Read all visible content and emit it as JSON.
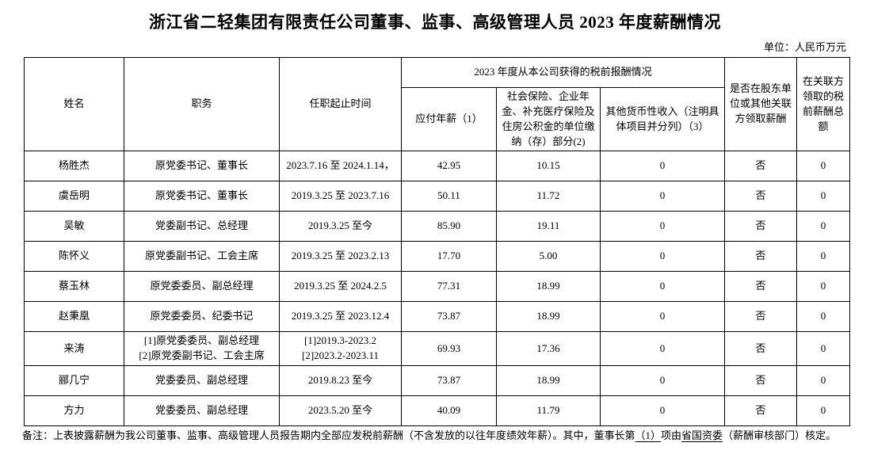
{
  "page": {
    "title": "浙江省二轻集团有限责任公司董事、监事、高级管理人员 2023 年度薪酬情况",
    "unit_label": "单位：人民币万元"
  },
  "table": {
    "headers": {
      "name": "姓名",
      "position": "职务",
      "term": "任职起止时间",
      "comp_group": "2023 年度从本公司获得的税前报酬情况",
      "salary": "应付年薪（1）",
      "insurance": "社会保险、企业年金、补充医疗保险及住房公积金的单位缴纳（存）部分(2)",
      "other_income": "其他货币性收入（注明具体项目并分列）（3）",
      "related_party": "是否在股东单位或其他关联方领取薪酬",
      "related_total": "在关联方领取的税前薪酬总额"
    },
    "columns_order": [
      "name",
      "position",
      "term",
      "salary",
      "insurance",
      "other",
      "related",
      "related_total"
    ],
    "rows": [
      {
        "name": "杨胜杰",
        "position": "原党委书记、董事长",
        "term": "2023.7.16 至 2024.1.14，",
        "salary": "42.95",
        "insurance": "10.15",
        "other": "0",
        "related": "否",
        "related_total": "0",
        "large": false
      },
      {
        "name": "虞岳明",
        "position": "原党委书记、董事长",
        "term": "2019.3.25 至 2023.7.16",
        "salary": "50.11",
        "insurance": "11.72",
        "other": "0",
        "related": "否",
        "related_total": "0",
        "large": true
      },
      {
        "name": "吴敏",
        "position": "党委副书记、总经理",
        "term": "2019.3.25 至今",
        "salary": "85.90",
        "insurance": "19.11",
        "other": "0",
        "related": "否",
        "related_total": "0",
        "large": false
      },
      {
        "name": "陈怀义",
        "position": "原党委副书记、工会主席",
        "term": "2019.3.25 至 2023.2.13",
        "salary": "17.70",
        "insurance": "5.00",
        "other": "0",
        "related": "否",
        "related_total": "0",
        "large": false
      },
      {
        "name": "蔡玉林",
        "position": "原党委委员、副总经理",
        "term": "2019.3.25 至 2024.2.5",
        "salary": "77.31",
        "insurance": "18.99",
        "other": "0",
        "related": "否",
        "related_total": "0",
        "large": false
      },
      {
        "name": "赵秉凰",
        "position": "原党委委员、纪委书记",
        "term": "2019.3.25 至 2023.12.4",
        "salary": "73.87",
        "insurance": "18.99",
        "other": "0",
        "related": "否",
        "related_total": "0",
        "large": false
      },
      {
        "name": "来涛",
        "position": "[1]原党委委员、副总经理\n[2]原党委副书记、工会主席",
        "term": "[1]2019.3-2023.2\n[2]2023.2-2023.11",
        "salary": "69.93",
        "insurance": "17.36",
        "other": "0",
        "related": "否",
        "related_total": "0",
        "large": false
      },
      {
        "name": "郦几宁",
        "position": "党委委员、副总经理",
        "term": "2019.8.23 至今",
        "salary": "73.87",
        "insurance": "18.99",
        "other": "0",
        "related": "否",
        "related_total": "0",
        "large": false
      },
      {
        "name": "方力",
        "position": "党委委员、副总经理",
        "term": "2023.5.20 至今",
        "salary": "40.09",
        "insurance": "11.79",
        "other": "0",
        "related": "否",
        "related_total": "0",
        "large": false
      }
    ]
  },
  "footnote": {
    "segments": [
      {
        "text": "备注：上表披露薪酬为我公司董事、监事、高级管理人员报告期内全部应发税前薪酬（不含发放的以往年度绩效年薪）。其中，董事长第",
        "underline": false
      },
      {
        "text": "（1）",
        "underline": true
      },
      {
        "text": "项由",
        "underline": false
      },
      {
        "text": "省国资委",
        "underline": true
      },
      {
        "text": "（薪酬审核部门）核定。",
        "underline": false
      }
    ]
  },
  "colors": {
    "text": "#000000",
    "background": "#ffffff",
    "border": "#000000"
  }
}
